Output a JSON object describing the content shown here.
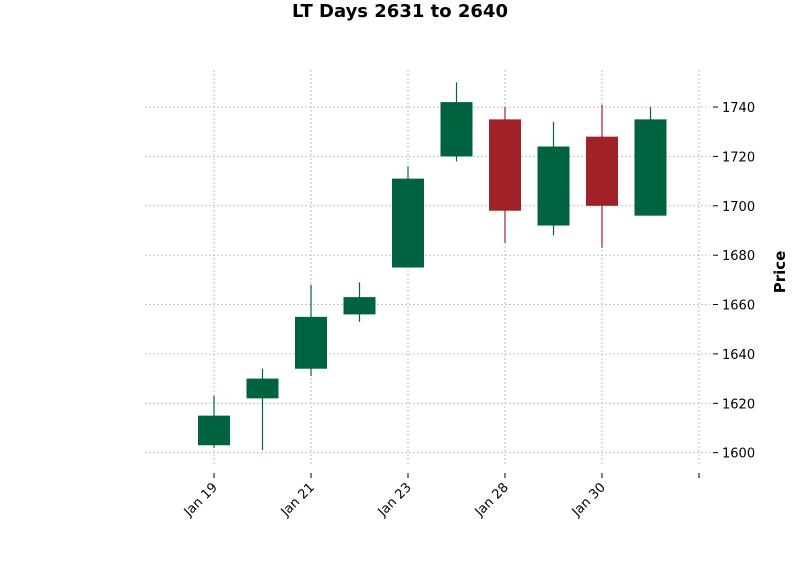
{
  "chart_data": {
    "type": "candlestick",
    "title": "LT Days 2631 to 2640",
    "ylabel": "Price",
    "xlabel": "",
    "x_tick_labels": [
      "Jan 19",
      "Jan 21",
      "Jan 23",
      "Jan 28",
      "Jan 30",
      ""
    ],
    "y_ticks": [
      1600,
      1620,
      1640,
      1660,
      1680,
      1700,
      1720,
      1740
    ],
    "ylim": [
      1595,
      1755
    ],
    "grid": true,
    "colors": {
      "up": "#006340",
      "down": "#a02128",
      "grid": "#b0b0b0"
    },
    "candles": [
      {
        "open": 1603,
        "high": 1623,
        "low": 1602,
        "close": 1615
      },
      {
        "open": 1622,
        "high": 1634,
        "low": 1601,
        "close": 1630
      },
      {
        "open": 1634,
        "high": 1668,
        "low": 1631,
        "close": 1655
      },
      {
        "open": 1656,
        "high": 1669,
        "low": 1653,
        "close": 1663
      },
      {
        "open": 1675,
        "high": 1716,
        "low": 1675,
        "close": 1711
      },
      {
        "open": 1720,
        "high": 1750,
        "low": 1718,
        "close": 1742
      },
      {
        "open": 1735,
        "high": 1740,
        "low": 1685,
        "close": 1698
      },
      {
        "open": 1692,
        "high": 1734,
        "low": 1688,
        "close": 1724
      },
      {
        "open": 1728,
        "high": 1741,
        "low": 1683,
        "close": 1700
      },
      {
        "open": 1696,
        "high": 1740,
        "low": 1696,
        "close": 1735
      }
    ]
  }
}
